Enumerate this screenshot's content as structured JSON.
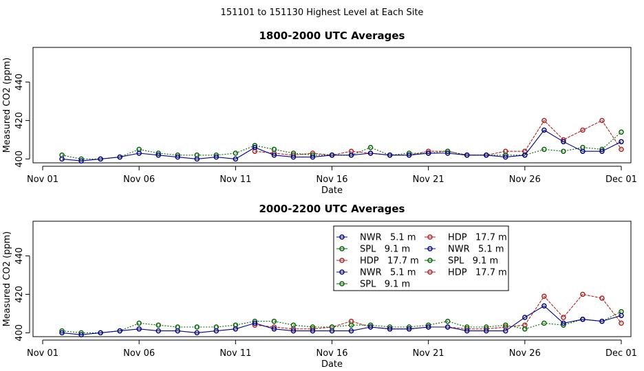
{
  "page_title": "151101  to  151130 Highest Level at Each Site",
  "colors": {
    "nwr": "#00008b",
    "spl": "#006400",
    "hdp": "#b22222"
  },
  "chart_data": [
    {
      "type": "line",
      "title": "1800-2000 UTC Averages",
      "xlabel": "Date",
      "ylabel": "Measured CO2 (ppm)",
      "xlim": [
        0.5,
        31.5
      ],
      "ylim": [
        398,
        458
      ],
      "yticks": [
        400,
        420,
        440
      ],
      "xticks": [
        {
          "x": 1,
          "label": "Nov 01"
        },
        {
          "x": 6,
          "label": "Nov 06"
        },
        {
          "x": 11,
          "label": "Nov 11"
        },
        {
          "x": 16,
          "label": "Nov 16"
        },
        {
          "x": 21,
          "label": "Nov 21"
        },
        {
          "x": 26,
          "label": "Nov 26"
        },
        {
          "x": 31,
          "label": "Dec 01"
        }
      ],
      "x": [
        2,
        3,
        4,
        5,
        6,
        7,
        8,
        9,
        10,
        11,
        12,
        13,
        14,
        15,
        16,
        17,
        18,
        19,
        20,
        21,
        22,
        23,
        24,
        25,
        26,
        27,
        28,
        29,
        30,
        31
      ],
      "series": [
        {
          "name": "NWR   5.1 m",
          "color": "#00008b",
          "values": [
            400,
            399,
            400,
            401,
            403,
            402,
            401,
            400,
            401,
            400,
            406,
            402,
            401,
            401,
            402,
            402,
            403,
            402,
            402,
            403,
            403,
            402,
            402,
            401,
            402,
            415,
            409,
            404,
            404,
            409
          ]
        },
        {
          "name": "SPL   9.1 m",
          "color": "#006400",
          "values": [
            402,
            400,
            400,
            401,
            405,
            403,
            402,
            402,
            402,
            403,
            407,
            405,
            403,
            402,
            402,
            402,
            406,
            402,
            403,
            403,
            404,
            402,
            402,
            402,
            402,
            405,
            404,
            406,
            405,
            414
          ]
        },
        {
          "name": "HDP   17.7 m",
          "color": "#b22222",
          "values": [
            null,
            null,
            null,
            null,
            null,
            null,
            null,
            null,
            null,
            null,
            404,
            403,
            402,
            403,
            402,
            404,
            403,
            402,
            402,
            404,
            404,
            402,
            402,
            404,
            404,
            420,
            410,
            415,
            420,
            405
          ]
        }
      ]
    },
    {
      "type": "line",
      "title": "2000-2200 UTC Averages",
      "xlabel": "Date",
      "ylabel": "Measured CO2 (ppm)",
      "xlim": [
        0.5,
        31.5
      ],
      "ylim": [
        398,
        458
      ],
      "yticks": [
        400,
        420,
        440
      ],
      "xticks": [
        {
          "x": 1,
          "label": "Nov 01"
        },
        {
          "x": 6,
          "label": "Nov 06"
        },
        {
          "x": 11,
          "label": "Nov 11"
        },
        {
          "x": 16,
          "label": "Nov 16"
        },
        {
          "x": 21,
          "label": "Nov 21"
        },
        {
          "x": 26,
          "label": "Nov 26"
        },
        {
          "x": 31,
          "label": "Dec 01"
        }
      ],
      "x": [
        2,
        3,
        4,
        5,
        6,
        7,
        8,
        9,
        10,
        11,
        12,
        13,
        14,
        15,
        16,
        17,
        18,
        19,
        20,
        21,
        22,
        23,
        24,
        25,
        26,
        27,
        28,
        29,
        30,
        31
      ],
      "series": [
        {
          "name": "NWR   5.1 m",
          "color": "#00008b",
          "values": [
            400,
            399,
            400,
            401,
            402,
            401,
            401,
            400,
            401,
            402,
            405,
            402,
            401,
            401,
            401,
            401,
            403,
            402,
            402,
            403,
            403,
            401,
            401,
            401,
            408,
            414,
            405,
            407,
            406,
            409
          ]
        },
        {
          "name": "SPL   9.1 m",
          "color": "#006400",
          "values": [
            401,
            400,
            400,
            401,
            405,
            404,
            403,
            403,
            403,
            404,
            406,
            406,
            404,
            403,
            403,
            404,
            404,
            403,
            403,
            404,
            406,
            403,
            403,
            404,
            402,
            405,
            404,
            407,
            406,
            411
          ]
        },
        {
          "name": "HDP   17.7 m",
          "color": "#b22222",
          "values": [
            null,
            null,
            null,
            null,
            null,
            null,
            null,
            null,
            null,
            null,
            404,
            403,
            402,
            402,
            403,
            406,
            403,
            402,
            402,
            403,
            403,
            402,
            402,
            403,
            404,
            419,
            408,
            420,
            418,
            405
          ]
        }
      ],
      "legend": {
        "placement": "top-right",
        "entries": [
          {
            "label": "NWR   5.1 m",
            "series": 0
          },
          {
            "label": "SPL   9.1 m",
            "series": 1
          },
          {
            "label": "HDP   17.7 m",
            "series": 2
          },
          {
            "label": "NWR   5.1 m",
            "series": 0
          },
          {
            "label": "SPL   9.1 m",
            "series": 1
          },
          {
            "label": "HDP   17.7 m",
            "series": 2
          },
          {
            "label": "NWR   5.1 m",
            "series": 0
          },
          {
            "label": "SPL   9.1 m",
            "series": 1
          },
          {
            "label": "HDP   17.7 m",
            "series": 2
          }
        ]
      }
    }
  ]
}
